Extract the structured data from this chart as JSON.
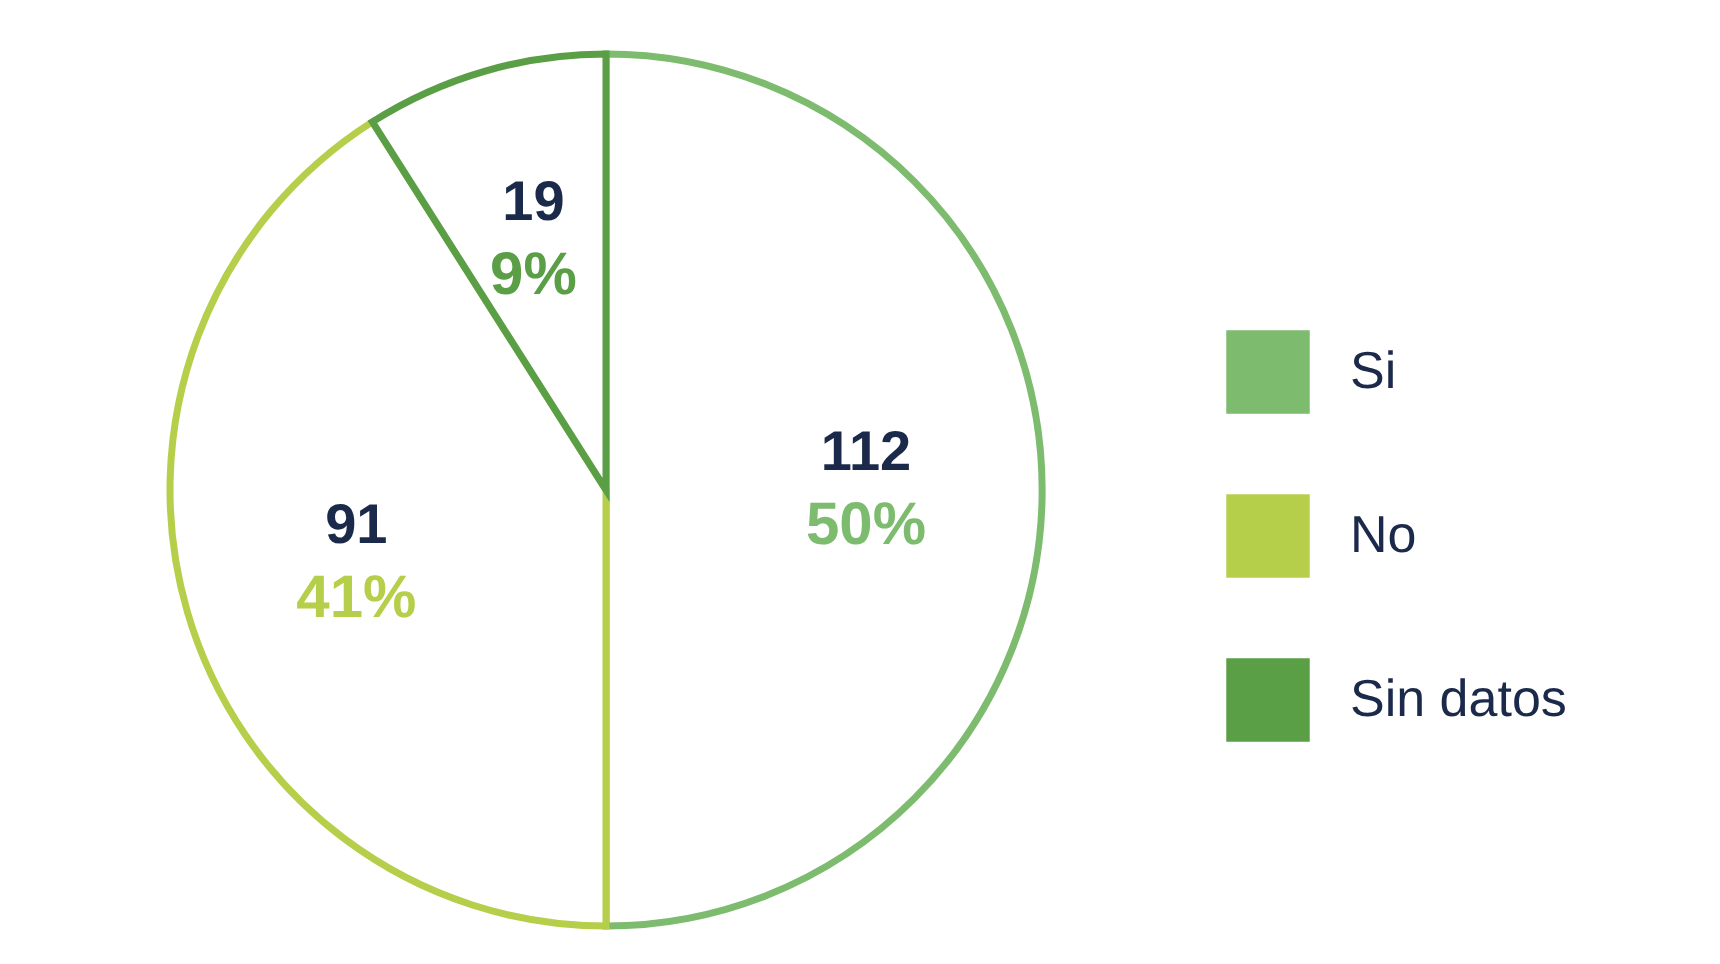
{
  "chart_data": {
    "type": "pie",
    "categories": [
      "Si",
      "No",
      "Sin datos"
    ],
    "values": [
      50,
      41,
      9
    ],
    "colors": [
      "#7dbb6f",
      "#b5cf4a",
      "#5a9e46"
    ],
    "value_labels": [
      "112\n50%",
      "91\n41%",
      "19\n9%"
    ],
    "legend": "right"
  }
}
